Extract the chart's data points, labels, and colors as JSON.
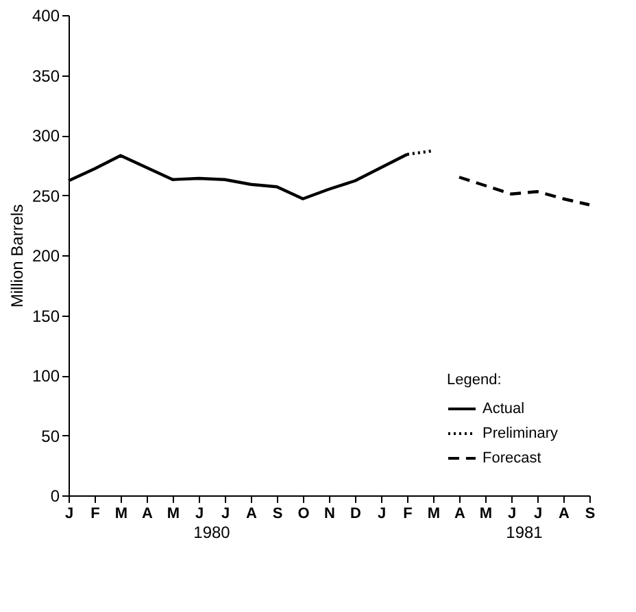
{
  "chart_data": {
    "type": "line",
    "ylabel": "Million Barrels",
    "legend_title": "Legend:",
    "legend": "bottom right",
    "grid": false,
    "categories": [
      "J",
      "F",
      "M",
      "A",
      "M",
      "J",
      "J",
      "A",
      "S",
      "O",
      "N",
      "D",
      "J",
      "F",
      "M",
      "A",
      "M",
      "J",
      "J",
      "A",
      "S"
    ],
    "ylim": [
      0,
      400
    ],
    "yticks": [
      0,
      50,
      100,
      150,
      200,
      250,
      300,
      350,
      400
    ],
    "annotations": [
      "1980",
      "1981"
    ],
    "series": [
      {
        "name": "Actual",
        "color": "#000000",
        "line_style": "solid",
        "values": [
          262,
          272,
          283,
          273,
          263,
          264,
          263,
          259,
          257,
          247,
          255,
          262,
          273,
          284,
          null,
          null,
          null,
          null,
          null,
          null,
          null
        ]
      },
      {
        "name": "Preliminary",
        "color": "#000000",
        "line_style": "dotted",
        "values": [
          null,
          null,
          null,
          null,
          null,
          null,
          null,
          null,
          null,
          null,
          null,
          null,
          null,
          284,
          287,
          null,
          null,
          null,
          null,
          null,
          null
        ]
      },
      {
        "name": "Forecast",
        "color": "#000000",
        "line_style": "dashed",
        "values": [
          null,
          null,
          null,
          null,
          null,
          null,
          null,
          null,
          null,
          null,
          null,
          null,
          null,
          null,
          null,
          265,
          258,
          251,
          253,
          247,
          242
        ]
      }
    ]
  }
}
